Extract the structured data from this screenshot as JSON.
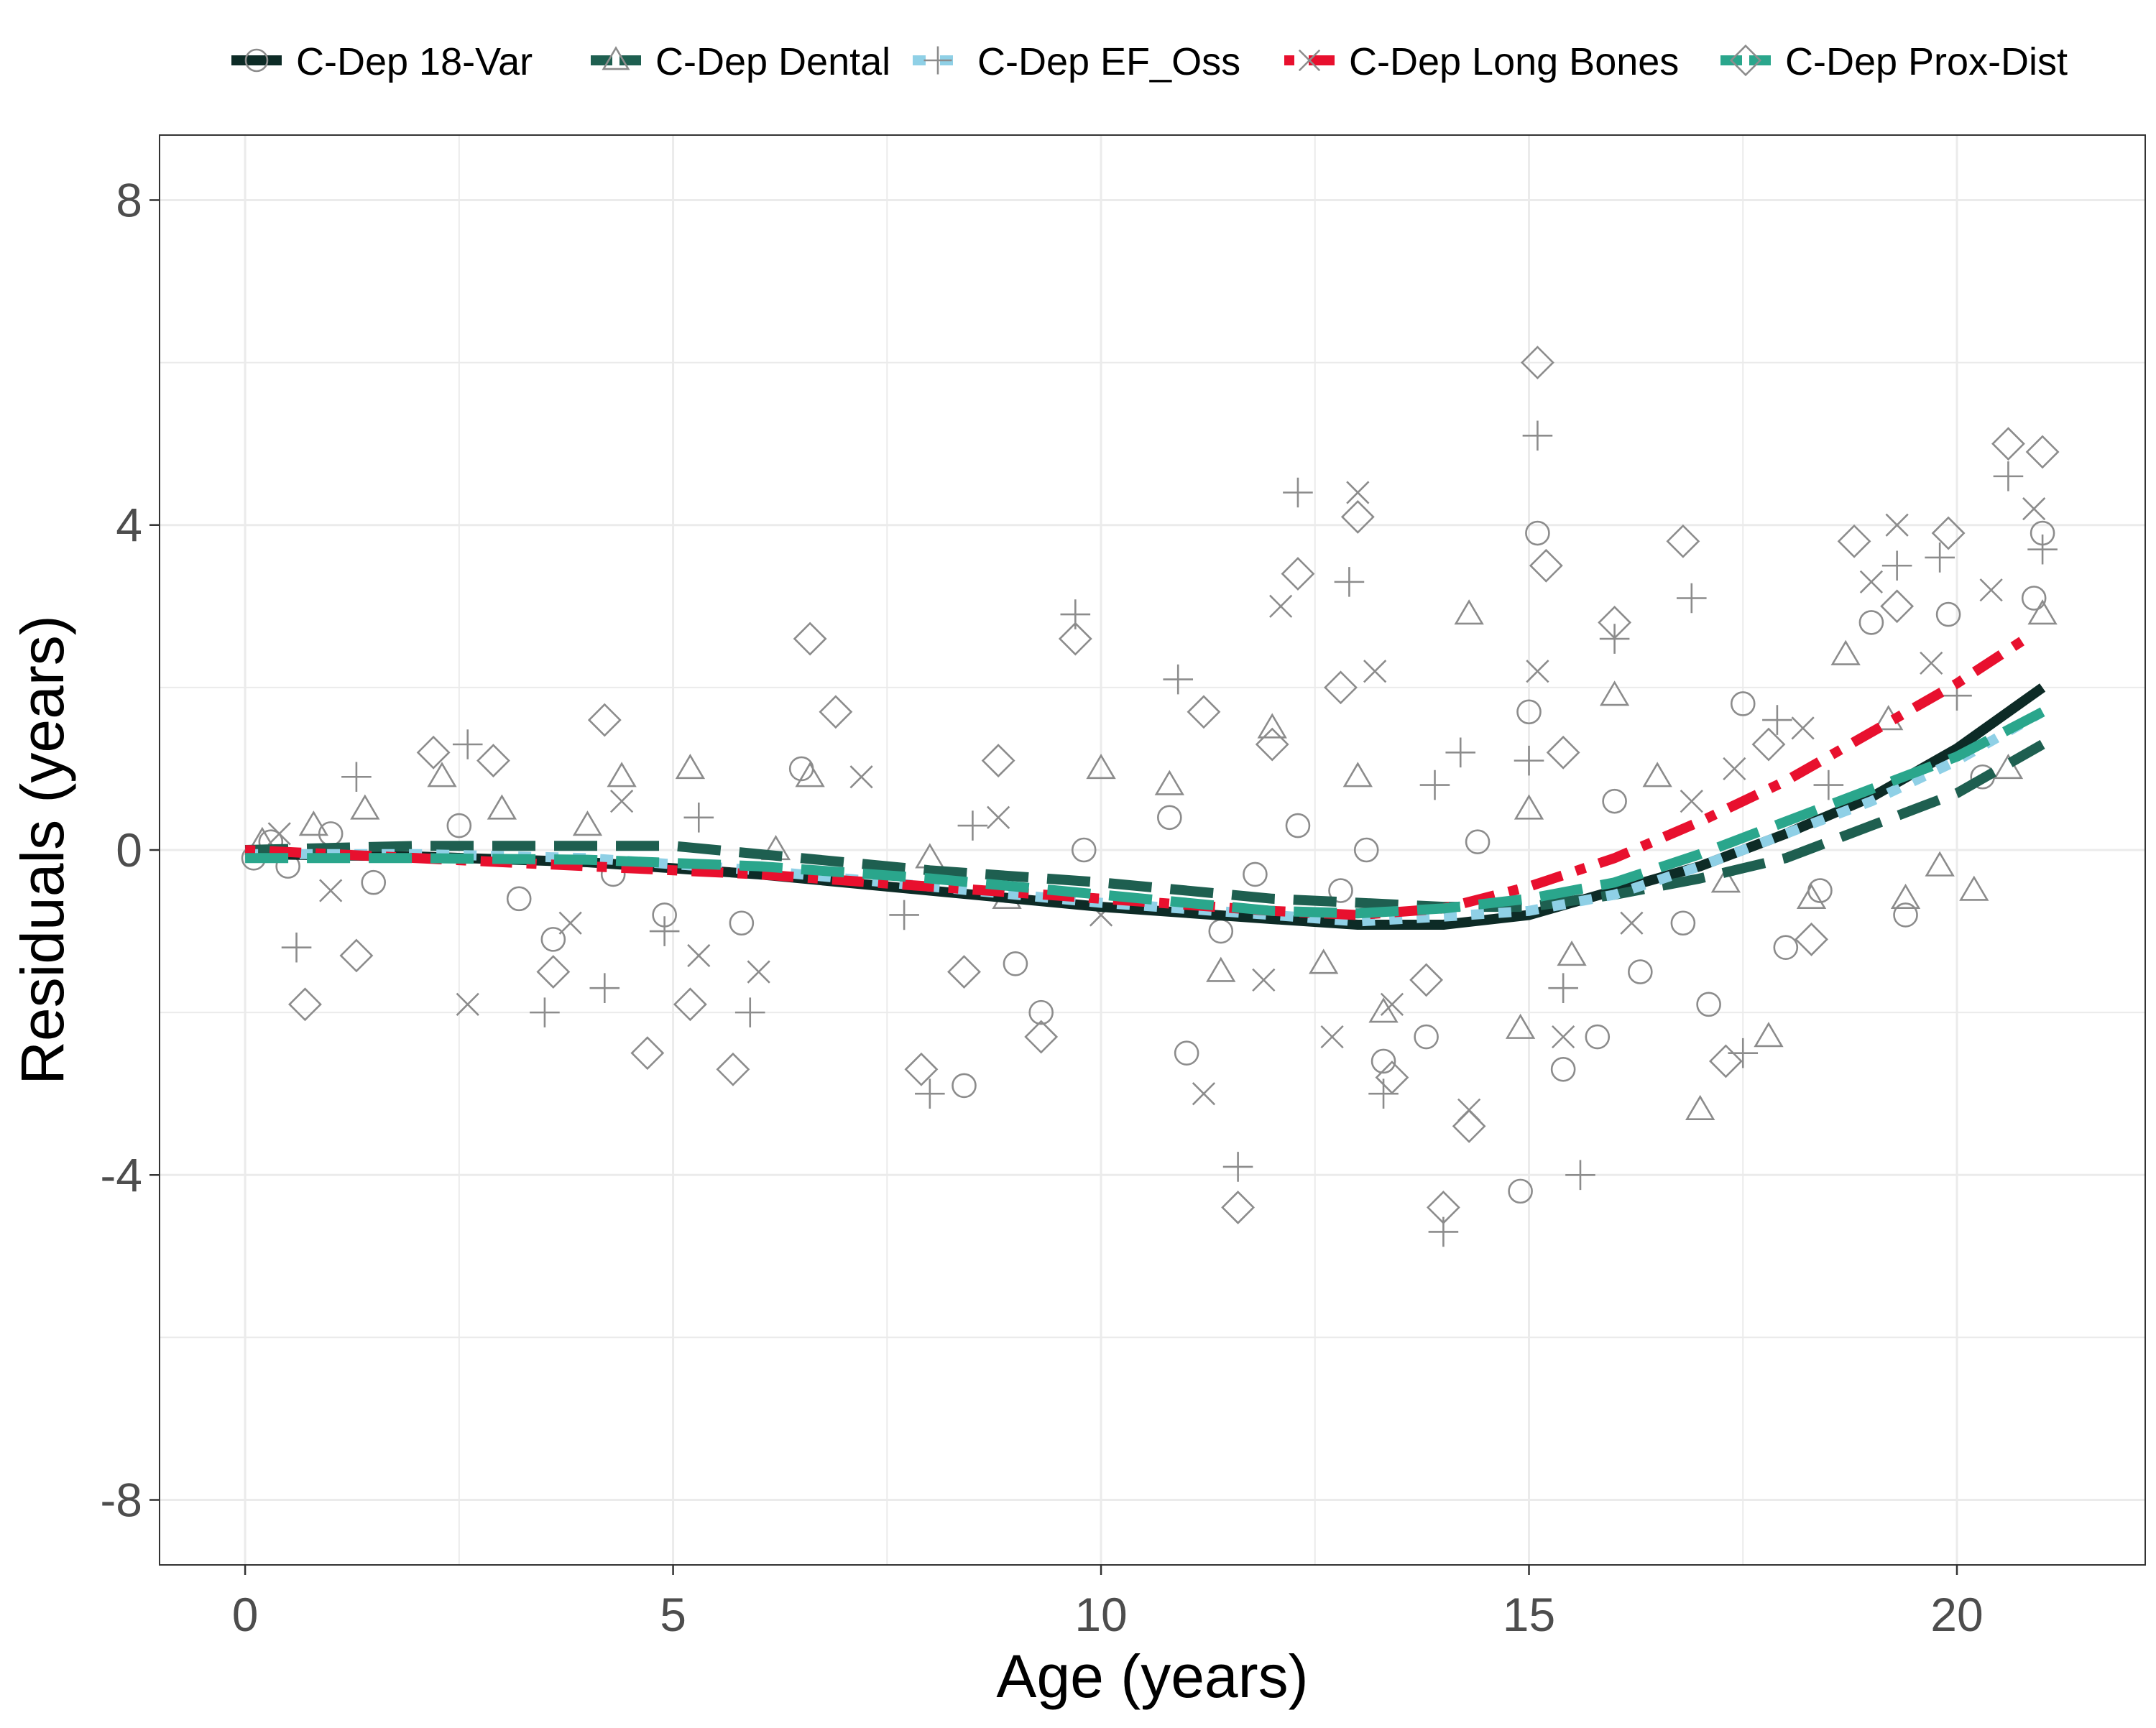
{
  "chart_data": {
    "type": "scatter",
    "xlabel": "Age (years)",
    "ylabel": "Residuals (years)",
    "xlim": [
      -1,
      22.2
    ],
    "ylim": [
      -8.8,
      8.8
    ],
    "x_ticks": [
      0,
      5,
      10,
      15,
      20
    ],
    "y_ticks": [
      -8,
      -4,
      0,
      4,
      8
    ],
    "x_tick_labels": [
      "0",
      "5",
      "10",
      "15",
      "20"
    ],
    "y_tick_labels": [
      "-8",
      "-4",
      "0",
      "4",
      "8"
    ],
    "grid": true,
    "legend_position": "top",
    "point_color": "#8c8c8c",
    "series": [
      {
        "name": "C-Dep 18-Var",
        "marker": "circle",
        "line_style": "solid",
        "color": "#0d2b26",
        "fit": [
          [
            0,
            -0.05
          ],
          [
            2,
            -0.08
          ],
          [
            4,
            -0.15
          ],
          [
            6,
            -0.3
          ],
          [
            8,
            -0.5
          ],
          [
            10,
            -0.7
          ],
          [
            12,
            -0.85
          ],
          [
            13,
            -0.92
          ],
          [
            14,
            -0.92
          ],
          [
            15,
            -0.8
          ],
          [
            16,
            -0.5
          ],
          [
            17,
            -0.2
          ],
          [
            18,
            0.2
          ],
          [
            19,
            0.65
          ],
          [
            20,
            1.25
          ],
          [
            21,
            2.0
          ]
        ],
        "points": [
          [
            0.1,
            -0.1
          ],
          [
            0.3,
            0.1
          ],
          [
            0.5,
            -0.2
          ],
          [
            1.0,
            0.2
          ],
          [
            1.5,
            -0.4
          ],
          [
            2.5,
            0.3
          ],
          [
            3.2,
            -0.6
          ],
          [
            3.6,
            -1.1
          ],
          [
            4.3,
            -0.3
          ],
          [
            4.9,
            -0.8
          ],
          [
            5.8,
            -0.9
          ],
          [
            6.5,
            1.0
          ],
          [
            8.4,
            -2.9
          ],
          [
            9.0,
            -1.4
          ],
          [
            9.3,
            -2.0
          ],
          [
            9.8,
            0.0
          ],
          [
            10.8,
            0.4
          ],
          [
            11.0,
            -2.5
          ],
          [
            11.4,
            -1.0
          ],
          [
            11.8,
            -0.3
          ],
          [
            12.3,
            0.3
          ],
          [
            12.8,
            -0.5
          ],
          [
            13.1,
            0.0
          ],
          [
            13.3,
            -2.6
          ],
          [
            13.8,
            -2.3
          ],
          [
            14.4,
            0.1
          ],
          [
            14.9,
            -4.2
          ],
          [
            15.0,
            1.7
          ],
          [
            15.1,
            3.9
          ],
          [
            15.4,
            -2.7
          ],
          [
            15.8,
            -2.3
          ],
          [
            16.0,
            0.6
          ],
          [
            16.3,
            -1.5
          ],
          [
            16.8,
            -0.9
          ],
          [
            17.1,
            -1.9
          ],
          [
            17.5,
            1.8
          ],
          [
            18.0,
            -1.2
          ],
          [
            18.4,
            -0.5
          ],
          [
            19.0,
            2.8
          ],
          [
            19.4,
            -0.8
          ],
          [
            19.9,
            2.9
          ],
          [
            20.3,
            0.9
          ],
          [
            20.9,
            3.1
          ],
          [
            21.0,
            3.9
          ]
        ]
      },
      {
        "name": "C-Dep Dental",
        "marker": "triangle",
        "line_style": "longdash",
        "color": "#1e5f50",
        "fit": [
          [
            0,
            0.0
          ],
          [
            2,
            0.05
          ],
          [
            4,
            0.05
          ],
          [
            5,
            0.05
          ],
          [
            6,
            -0.05
          ],
          [
            8,
            -0.25
          ],
          [
            10,
            -0.4
          ],
          [
            12,
            -0.6
          ],
          [
            14,
            -0.7
          ],
          [
            15,
            -0.7
          ],
          [
            16,
            -0.55
          ],
          [
            17,
            -0.35
          ],
          [
            18,
            -0.1
          ],
          [
            19,
            0.3
          ],
          [
            20,
            0.7
          ],
          [
            21,
            1.3
          ]
        ],
        "points": [
          [
            0.2,
            0.1
          ],
          [
            0.8,
            0.3
          ],
          [
            1.4,
            0.5
          ],
          [
            2.3,
            0.9
          ],
          [
            3.0,
            0.5
          ],
          [
            4.0,
            0.3
          ],
          [
            4.4,
            0.9
          ],
          [
            5.2,
            1.0
          ],
          [
            6.2,
            0.0
          ],
          [
            6.6,
            0.9
          ],
          [
            8.0,
            -0.1
          ],
          [
            8.9,
            -0.6
          ],
          [
            10.0,
            1.0
          ],
          [
            10.8,
            0.8
          ],
          [
            11.4,
            -1.5
          ],
          [
            12.0,
            1.5
          ],
          [
            12.6,
            -1.4
          ],
          [
            13.0,
            0.9
          ],
          [
            13.3,
            -2.0
          ],
          [
            14.3,
            2.9
          ],
          [
            14.9,
            -2.2
          ],
          [
            15.0,
            0.5
          ],
          [
            15.5,
            -1.3
          ],
          [
            16.0,
            1.9
          ],
          [
            16.5,
            0.9
          ],
          [
            17.0,
            -3.2
          ],
          [
            17.3,
            -0.4
          ],
          [
            17.8,
            -2.3
          ],
          [
            18.3,
            -0.6
          ],
          [
            18.7,
            2.4
          ],
          [
            19.2,
            1.6
          ],
          [
            19.4,
            -0.6
          ],
          [
            19.8,
            -0.2
          ],
          [
            20.2,
            -0.5
          ],
          [
            20.6,
            1.0
          ],
          [
            21.0,
            2.9
          ]
        ]
      },
      {
        "name": "C-Dep EF_Oss",
        "marker": "plus",
        "line_style": "dotted",
        "color": "#8fd0e6",
        "fit": [
          [
            0,
            -0.05
          ],
          [
            2,
            -0.05
          ],
          [
            4,
            -0.1
          ],
          [
            6,
            -0.25
          ],
          [
            8,
            -0.45
          ],
          [
            10,
            -0.65
          ],
          [
            12,
            -0.8
          ],
          [
            13,
            -0.88
          ],
          [
            14,
            -0.82
          ],
          [
            15,
            -0.75
          ],
          [
            16,
            -0.55
          ],
          [
            17,
            -0.2
          ],
          [
            18,
            0.2
          ],
          [
            19,
            0.6
          ],
          [
            20,
            1.1
          ],
          [
            21,
            1.7
          ]
        ],
        "points": [
          [
            0.6,
            -1.2
          ],
          [
            1.3,
            0.9
          ],
          [
            2.6,
            1.3
          ],
          [
            3.5,
            -2.0
          ],
          [
            4.2,
            -1.7
          ],
          [
            4.9,
            -1.0
          ],
          [
            5.3,
            0.4
          ],
          [
            5.9,
            -2.0
          ],
          [
            7.7,
            -0.8
          ],
          [
            8.0,
            -3.0
          ],
          [
            8.5,
            0.3
          ],
          [
            9.7,
            2.9
          ],
          [
            10.9,
            2.1
          ],
          [
            11.6,
            -3.9
          ],
          [
            12.3,
            4.4
          ],
          [
            12.9,
            3.3
          ],
          [
            13.3,
            -3.0
          ],
          [
            13.9,
            0.8
          ],
          [
            14.0,
            -4.7
          ],
          [
            14.2,
            1.2
          ],
          [
            15.0,
            1.1
          ],
          [
            15.1,
            5.1
          ],
          [
            15.4,
            -1.7
          ],
          [
            15.6,
            -4.0
          ],
          [
            16.0,
            2.6
          ],
          [
            16.9,
            3.1
          ],
          [
            17.5,
            -2.5
          ],
          [
            17.9,
            1.6
          ],
          [
            18.5,
            0.8
          ],
          [
            19.3,
            3.5
          ],
          [
            19.8,
            3.6
          ],
          [
            20.0,
            1.9
          ],
          [
            20.6,
            4.6
          ],
          [
            21.0,
            3.7
          ]
        ]
      },
      {
        "name": "C-Dep Long Bones",
        "marker": "x",
        "line_style": "dotdash",
        "color": "#e8102e",
        "fit": [
          [
            0,
            0.0
          ],
          [
            2,
            -0.1
          ],
          [
            4,
            -0.2
          ],
          [
            6,
            -0.3
          ],
          [
            8,
            -0.45
          ],
          [
            10,
            -0.6
          ],
          [
            12,
            -0.75
          ],
          [
            13,
            -0.8
          ],
          [
            14,
            -0.72
          ],
          [
            15,
            -0.45
          ],
          [
            16,
            -0.1
          ],
          [
            17,
            0.35
          ],
          [
            18,
            0.85
          ],
          [
            19,
            1.45
          ],
          [
            20,
            2.05
          ],
          [
            20.8,
            2.6
          ]
        ],
        "points": [
          [
            0.4,
            0.2
          ],
          [
            1.0,
            -0.5
          ],
          [
            2.6,
            -1.9
          ],
          [
            3.8,
            -0.9
          ],
          [
            4.4,
            0.6
          ],
          [
            5.3,
            -1.3
          ],
          [
            6.0,
            -1.5
          ],
          [
            7.2,
            0.9
          ],
          [
            8.8,
            0.4
          ],
          [
            10.0,
            -0.8
          ],
          [
            11.2,
            -3.0
          ],
          [
            11.9,
            -1.6
          ],
          [
            12.1,
            3.0
          ],
          [
            12.7,
            -2.3
          ],
          [
            13.0,
            4.4
          ],
          [
            13.2,
            2.2
          ],
          [
            13.4,
            -1.9
          ],
          [
            14.3,
            -3.2
          ],
          [
            15.1,
            2.2
          ],
          [
            15.4,
            -2.3
          ],
          [
            16.2,
            -0.9
          ],
          [
            16.9,
            0.6
          ],
          [
            17.4,
            1.0
          ],
          [
            18.2,
            1.5
          ],
          [
            19.0,
            3.3
          ],
          [
            19.3,
            4.0
          ],
          [
            19.7,
            2.3
          ],
          [
            20.4,
            3.2
          ],
          [
            20.9,
            4.2
          ]
        ]
      },
      {
        "name": "C-Dep Prox-Dist",
        "marker": "diamond",
        "line_style": "longdash",
        "color": "#2aa68c",
        "fit": [
          [
            0,
            -0.1
          ],
          [
            2,
            -0.1
          ],
          [
            4,
            -0.12
          ],
          [
            6,
            -0.2
          ],
          [
            8,
            -0.35
          ],
          [
            10,
            -0.55
          ],
          [
            12,
            -0.75
          ],
          [
            13,
            -0.78
          ],
          [
            14,
            -0.72
          ],
          [
            15,
            -0.6
          ],
          [
            16,
            -0.4
          ],
          [
            17,
            -0.05
          ],
          [
            18,
            0.35
          ],
          [
            19,
            0.75
          ],
          [
            20,
            1.15
          ],
          [
            21,
            1.7
          ]
        ],
        "points": [
          [
            0.7,
            -1.9
          ],
          [
            1.3,
            -1.3
          ],
          [
            2.2,
            1.2
          ],
          [
            2.9,
            1.1
          ],
          [
            3.6,
            -1.5
          ],
          [
            4.2,
            1.6
          ],
          [
            4.7,
            -2.5
          ],
          [
            5.2,
            -1.9
          ],
          [
            5.7,
            -2.7
          ],
          [
            6.6,
            2.6
          ],
          [
            6.9,
            1.7
          ],
          [
            7.9,
            -2.7
          ],
          [
            8.4,
            -1.5
          ],
          [
            8.8,
            1.1
          ],
          [
            9.3,
            -2.3
          ],
          [
            9.7,
            2.6
          ],
          [
            11.2,
            1.7
          ],
          [
            11.6,
            -4.4
          ],
          [
            12.0,
            1.3
          ],
          [
            12.3,
            3.4
          ],
          [
            12.8,
            2.0
          ],
          [
            13.0,
            4.1
          ],
          [
            13.4,
            -2.8
          ],
          [
            13.8,
            -1.6
          ],
          [
            14.0,
            -4.4
          ],
          [
            14.3,
            -3.4
          ],
          [
            15.1,
            6.0
          ],
          [
            15.2,
            3.5
          ],
          [
            15.4,
            1.2
          ],
          [
            16.0,
            2.8
          ],
          [
            16.8,
            3.8
          ],
          [
            17.3,
            -2.6
          ],
          [
            17.8,
            1.3
          ],
          [
            18.3,
            -1.1
          ],
          [
            18.8,
            3.8
          ],
          [
            19.3,
            3.0
          ],
          [
            19.9,
            3.9
          ],
          [
            20.6,
            5.0
          ],
          [
            21.0,
            4.9
          ]
        ]
      }
    ]
  }
}
